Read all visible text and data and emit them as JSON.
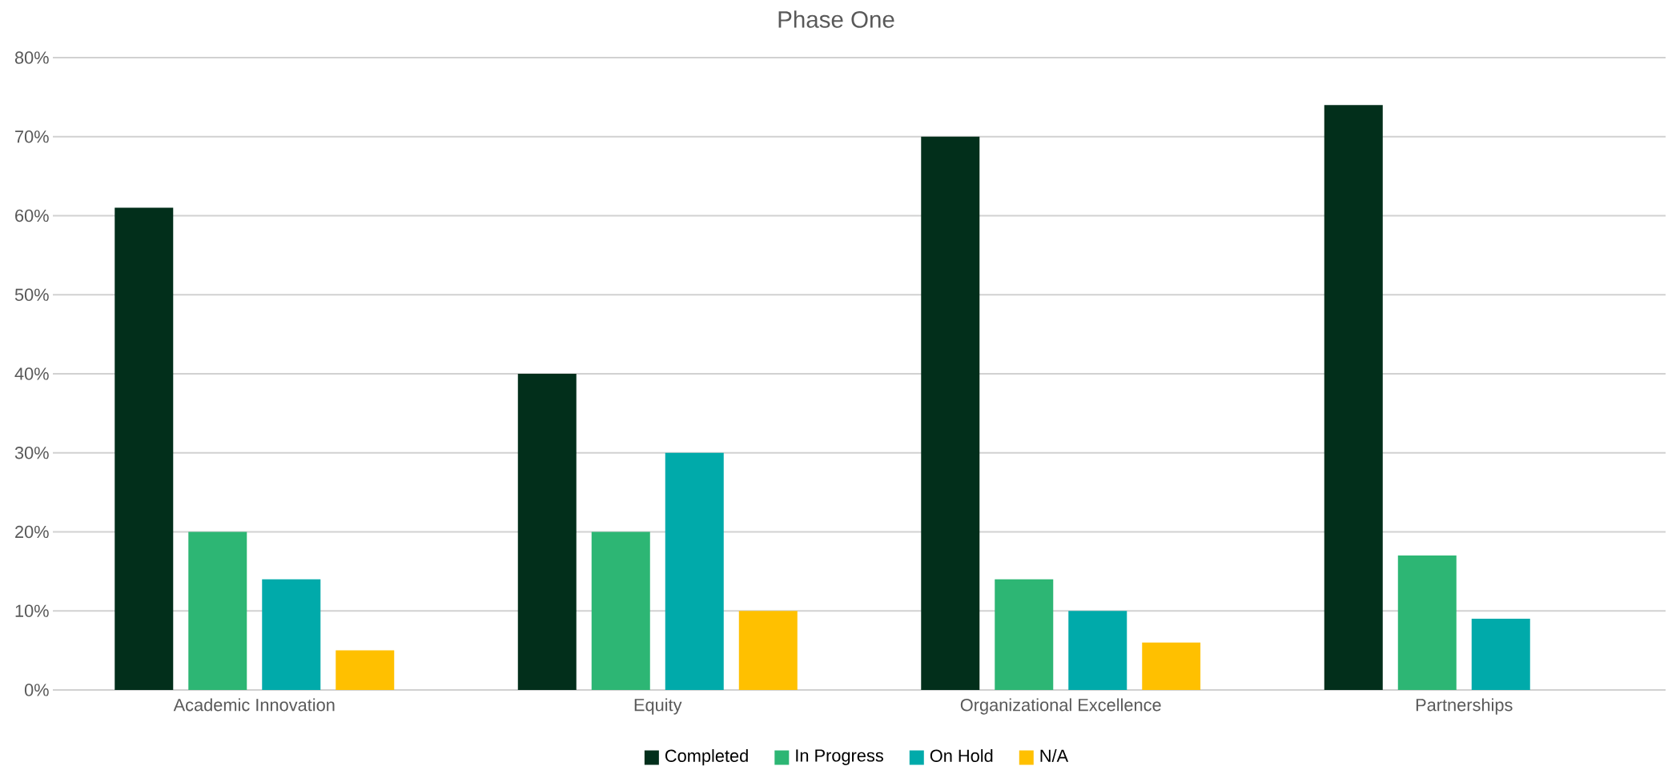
{
  "chart_data": {
    "type": "bar",
    "title": "Phase One",
    "categories": [
      "Academic Innovation",
      "Equity",
      "Organizational Excellence",
      "Partnerships"
    ],
    "series": [
      {
        "name": "Completed",
        "color": "#022f1b",
        "values": [
          61,
          40,
          70,
          74
        ]
      },
      {
        "name": "In Progress",
        "color": "#2db674",
        "values": [
          20,
          20,
          14,
          17
        ]
      },
      {
        "name": "On Hold",
        "color": "#00aaaa",
        "values": [
          14,
          30,
          10,
          9
        ]
      },
      {
        "name": "N/A",
        "color": "#ffc000",
        "values": [
          5,
          10,
          6,
          null
        ]
      }
    ],
    "ylim": [
      0,
      80
    ],
    "yticks": [
      {
        "value": 0,
        "label": "0%"
      },
      {
        "value": 10,
        "label": "10%"
      },
      {
        "value": 20,
        "label": "20%"
      },
      {
        "value": 30,
        "label": "30%"
      },
      {
        "value": 40,
        "label": "40%"
      },
      {
        "value": 50,
        "label": "50%"
      },
      {
        "value": 60,
        "label": "60%"
      },
      {
        "value": 70,
        "label": "70%"
      },
      {
        "value": 80,
        "label": "80%"
      }
    ],
    "grid": "y",
    "legend": "bottom"
  }
}
